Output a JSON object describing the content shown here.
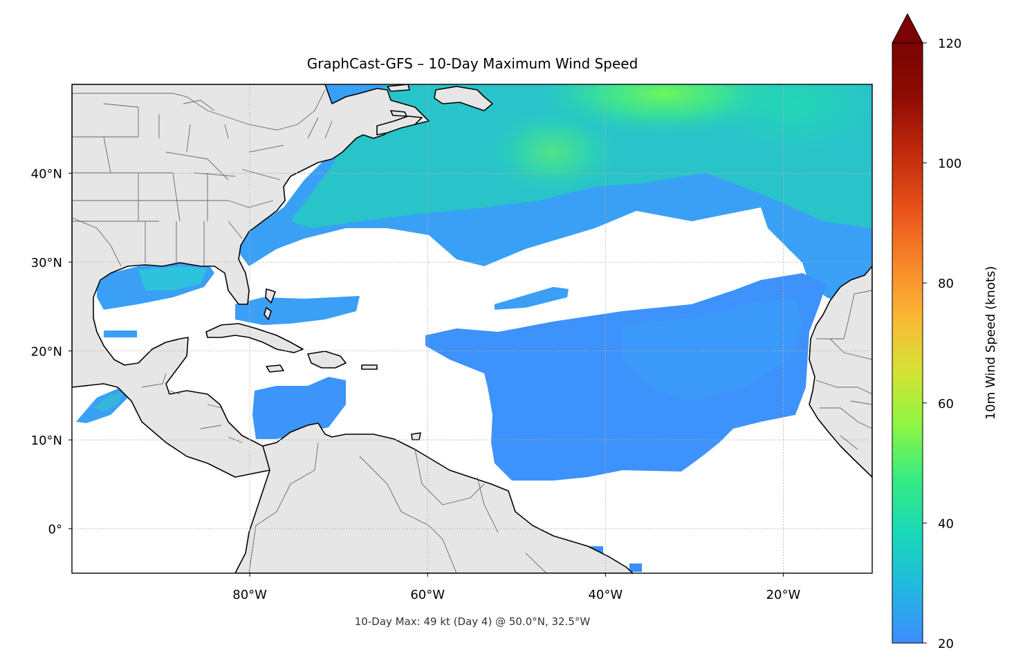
{
  "figure": {
    "title": "GraphCast-GFS – 10-Day Maximum Wind Speed",
    "footnote": "10-Day Max: 49 kt (Day 4) @ 50.0°N, 32.5°W"
  },
  "map": {
    "lon_range": [
      -100,
      -10
    ],
    "lat_range": [
      -5,
      50
    ],
    "x_ticks": [
      {
        "lon": -80,
        "label": "80°W"
      },
      {
        "lon": -60,
        "label": "60°W"
      },
      {
        "lon": -40,
        "label": "40°W"
      },
      {
        "lon": -20,
        "label": "20°W"
      }
    ],
    "y_ticks": [
      {
        "lat": 40,
        "label": "40°N"
      },
      {
        "lat": 30,
        "label": "30°N"
      },
      {
        "lat": 20,
        "label": "20°N"
      },
      {
        "lat": 10,
        "label": "10°N"
      },
      {
        "lat": 0,
        "label": "0°"
      }
    ],
    "gridlines": true,
    "land_color": "#e6e6e6",
    "ocean_color": "#ffffff"
  },
  "colorbar": {
    "label": "10m Wind Speed (knots)",
    "min": 20,
    "max": 120,
    "extend": "max",
    "ticks": [
      {
        "value": 20,
        "label": "20"
      },
      {
        "value": 40,
        "label": "40"
      },
      {
        "value": 60,
        "label": "60"
      },
      {
        "value": 80,
        "label": "80"
      },
      {
        "value": 100,
        "label": "100"
      },
      {
        "value": 120,
        "label": "120"
      }
    ],
    "colormap_stops": [
      "#3e8bff",
      "#23b8e0",
      "#19d8b8",
      "#35ec82",
      "#8ff542",
      "#d6e236",
      "#f9b734",
      "#f7842a",
      "#e6501a",
      "#c02a0c",
      "#8e0c03",
      "#7a0403"
    ]
  }
}
